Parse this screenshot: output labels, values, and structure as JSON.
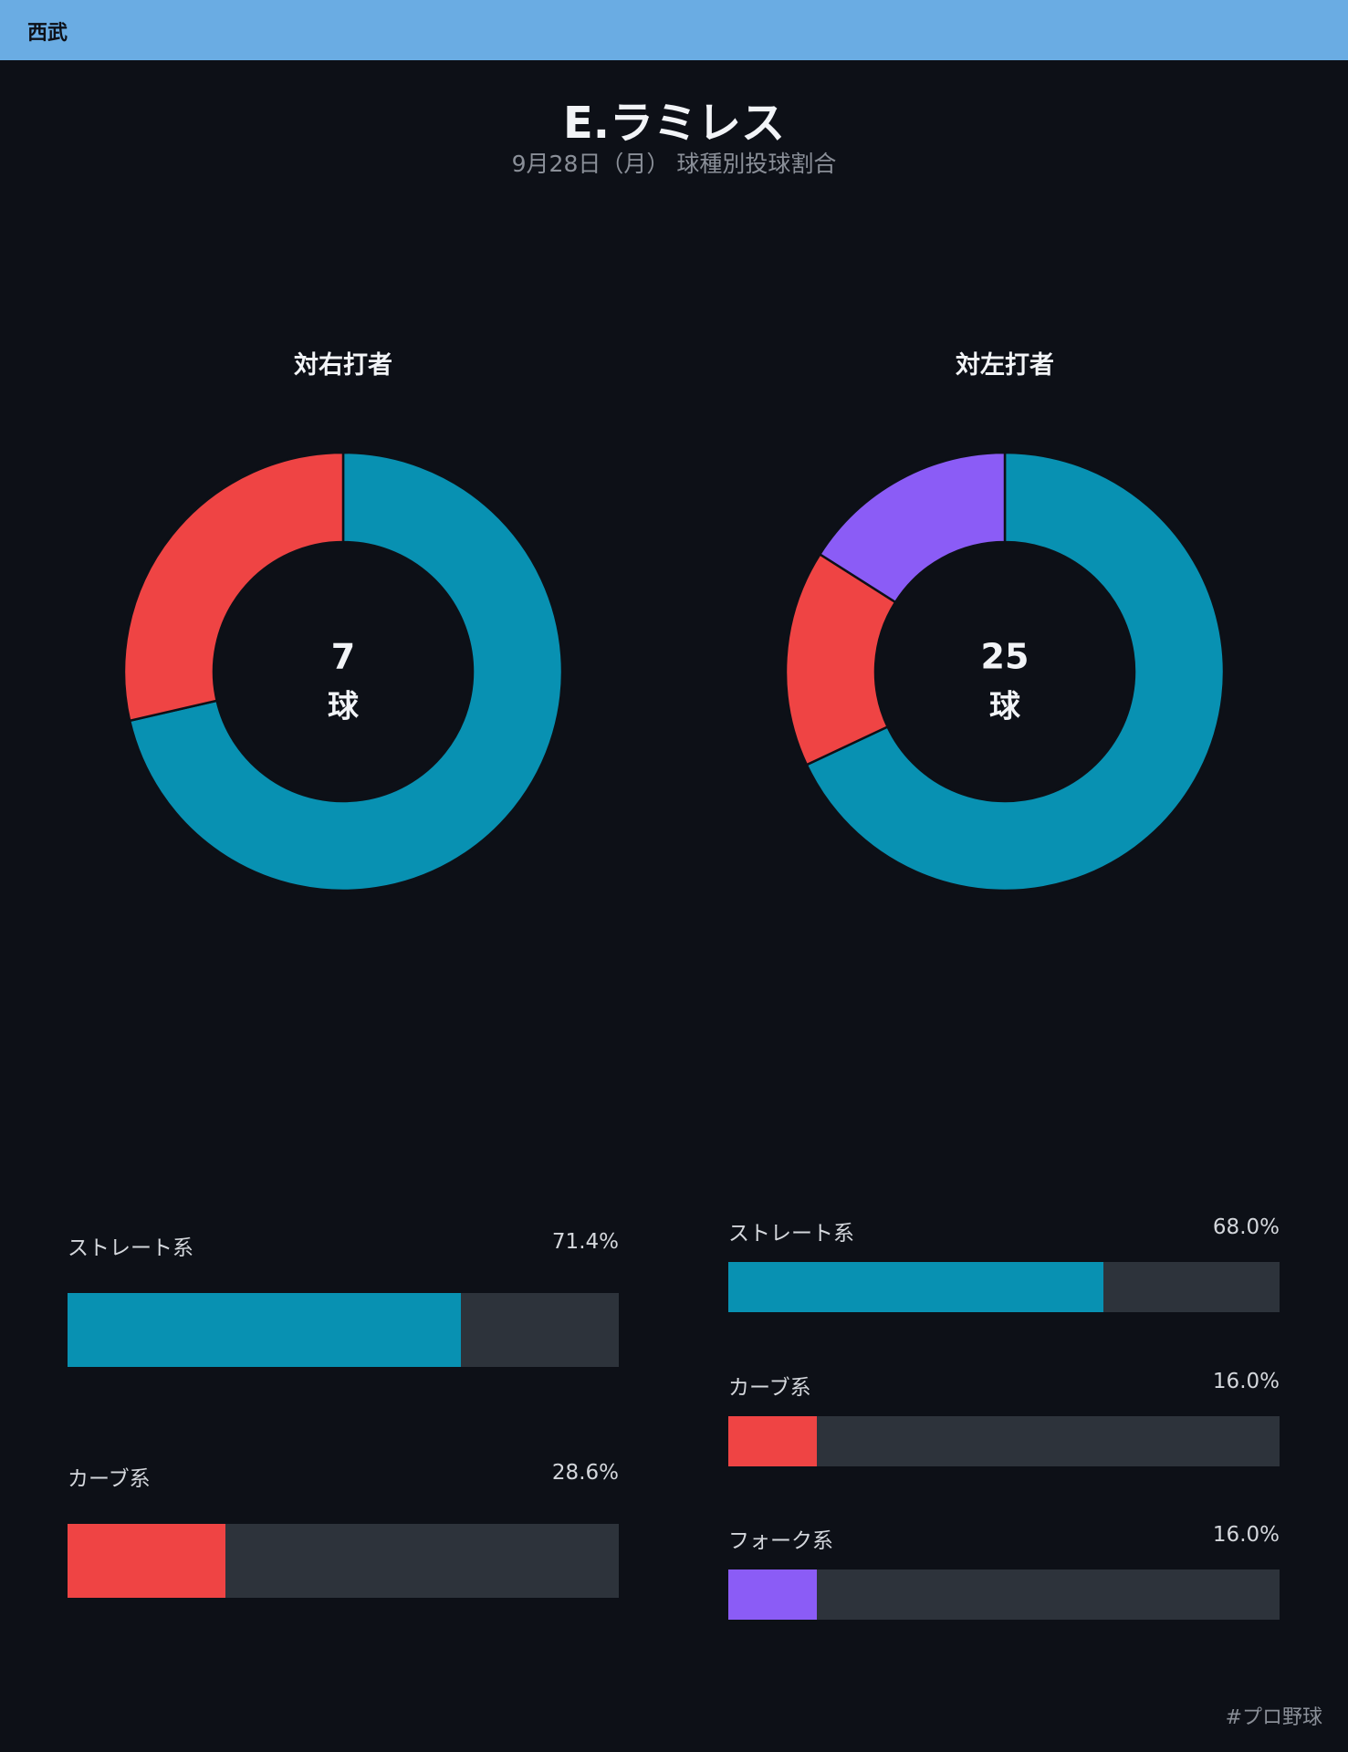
{
  "header": {
    "team": "西武"
  },
  "title": "E.ラミレス",
  "subtitle": "9月28日（月） 球種別投球割合",
  "footer": {
    "hashtag": "#プロ野球"
  },
  "colors": {
    "straight": "#0891b2",
    "curve": "#ef4444",
    "fork": "#8b5cf6",
    "track": "#2d333b",
    "background": "#0d1017",
    "header": "#6aace3"
  },
  "chart_data": [
    {
      "type": "pie",
      "title": "対右打者",
      "center_count": "7",
      "center_unit": "球",
      "categories": [
        "ストレート系",
        "カーブ系"
      ],
      "values": [
        71.4,
        28.6
      ],
      "colors": [
        "#0891b2",
        "#ef4444"
      ],
      "labels": [
        "71.4%",
        "28.6%"
      ]
    },
    {
      "type": "pie",
      "title": "対左打者",
      "center_count": "25",
      "center_unit": "球",
      "categories": [
        "ストレート系",
        "カーブ系",
        "フォーク系"
      ],
      "values": [
        68.0,
        16.0,
        16.0
      ],
      "colors": [
        "#0891b2",
        "#ef4444",
        "#8b5cf6"
      ],
      "labels": [
        "68.0%",
        "16.0%",
        "16.0%"
      ]
    }
  ]
}
